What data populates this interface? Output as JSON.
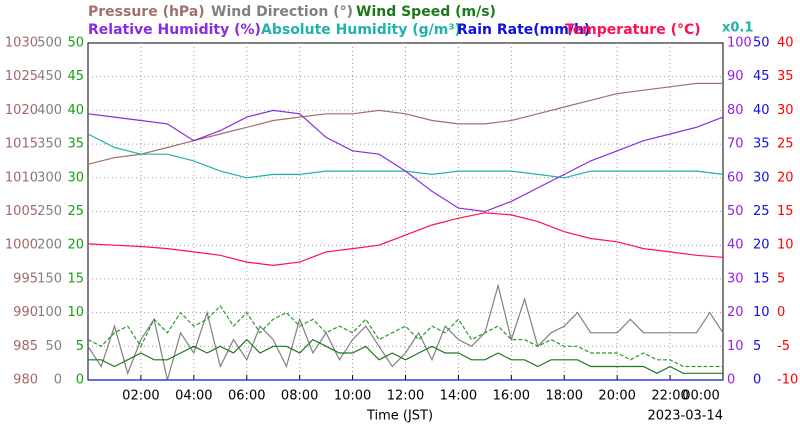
{
  "chart_data": {
    "type": "line",
    "xlabel": "Time (JST)",
    "date_label": "2023-03-14",
    "xlim": [
      0,
      24
    ],
    "xticks": [
      {
        "value": 2,
        "label": "02:00"
      },
      {
        "value": 4,
        "label": "04:00"
      },
      {
        "value": 6,
        "label": "06:00"
      },
      {
        "value": 8,
        "label": "08:00"
      },
      {
        "value": 10,
        "label": "10:00"
      },
      {
        "value": 12,
        "label": "12:00"
      },
      {
        "value": 14,
        "label": "14:00"
      },
      {
        "value": 16,
        "label": "16:00"
      },
      {
        "value": 18,
        "label": "18:00"
      },
      {
        "value": 20,
        "label": "20:00"
      },
      {
        "value": 22,
        "label": "22:00"
      },
      {
        "value": 24,
        "label": "00:00"
      }
    ],
    "grid": true,
    "x": [
      0,
      1,
      2,
      3,
      4,
      5,
      6,
      7,
      8,
      9,
      10,
      11,
      12,
      13,
      14,
      15,
      16,
      17,
      18,
      19,
      20,
      21,
      22,
      23,
      24
    ],
    "axes": [
      {
        "color": "#a06868",
        "lim": [
          980,
          1030
        ],
        "ticks": [
          980,
          985,
          990,
          995,
          1000,
          1005,
          1010,
          1015,
          1020,
          1025,
          1030
        ]
      },
      {
        "color": "#808080",
        "lim": [
          0,
          500
        ],
        "ticks": [
          0,
          50,
          100,
          150,
          200,
          250,
          300,
          350,
          400,
          450,
          500
        ]
      },
      {
        "color": "#16a016",
        "lim": [
          0,
          50
        ],
        "ticks": [
          0,
          5,
          10,
          15,
          20,
          25,
          30,
          35,
          40,
          45,
          50
        ]
      },
      {
        "color": "#9a1ee6",
        "lim": [
          0,
          100
        ],
        "ticks": [
          0,
          10,
          20,
          30,
          40,
          50,
          60,
          70,
          80,
          90,
          100
        ]
      },
      {
        "color": "#1010e0",
        "lim": [
          0,
          50
        ],
        "ticks": [
          0,
          5,
          10,
          15,
          20,
          25,
          30,
          35,
          40,
          45,
          50
        ]
      },
      {
        "color": "#ff0000",
        "lim": [
          -10,
          40
        ],
        "ticks": [
          -10,
          -5,
          0,
          5,
          10,
          15,
          20,
          25,
          30,
          35,
          40
        ]
      }
    ],
    "series": [
      {
        "name": "Pressure (hPa)",
        "color": "#a07070",
        "axis": 0,
        "values": [
          1012,
          1013,
          1013.5,
          1014.5,
          1015.5,
          1016.5,
          1017.5,
          1018.5,
          1019,
          1019.5,
          1019.5,
          1020,
          1019.5,
          1018.5,
          1018,
          1018,
          1018.5,
          1019.5,
          1020.5,
          1021.5,
          1022.5,
          1023,
          1023.5,
          1024,
          1024
        ]
      },
      {
        "name": "Wind Direction (°)",
        "color": "#808080",
        "axis": 1,
        "x": [
          0,
          0.5,
          1,
          1.5,
          2,
          2.5,
          3,
          3.5,
          4,
          4.5,
          5,
          5.5,
          6,
          6.5,
          7,
          7.5,
          8,
          8.5,
          9,
          9.5,
          10,
          10.5,
          11,
          11.5,
          12,
          12.5,
          13,
          13.5,
          14,
          14.5,
          15,
          15.5,
          16,
          16.5,
          17,
          17.5,
          18,
          18.5,
          19,
          19.5,
          20,
          20.5,
          21,
          21.5,
          22,
          22.5,
          23,
          23.5,
          24
        ],
        "values": [
          50,
          20,
          80,
          10,
          60,
          90,
          0,
          70,
          40,
          100,
          20,
          60,
          30,
          80,
          60,
          20,
          90,
          40,
          70,
          30,
          60,
          80,
          50,
          20,
          40,
          70,
          30,
          80,
          60,
          50,
          70,
          140,
          60,
          120,
          50,
          70,
          80,
          100,
          70,
          70,
          70,
          90,
          70,
          70,
          70,
          70,
          70,
          100,
          70
        ]
      },
      {
        "name": "Wind Speed (m/s)",
        "color": "#1a7a1a",
        "axis": 2,
        "x": [
          0,
          0.5,
          1,
          1.5,
          2,
          2.5,
          3,
          3.5,
          4,
          4.5,
          5,
          5.5,
          6,
          6.5,
          7,
          7.5,
          8,
          8.5,
          9,
          9.5,
          10,
          10.5,
          11,
          11.5,
          12,
          12.5,
          13,
          13.5,
          14,
          14.5,
          15,
          15.5,
          16,
          16.5,
          17,
          17.5,
          18,
          18.5,
          19,
          19.5,
          20,
          20.5,
          21,
          21.5,
          22,
          22.5,
          23,
          23.5,
          24
        ],
        "values": [
          3,
          3,
          2,
          3,
          4,
          3,
          3,
          4,
          5,
          4,
          5,
          4,
          6,
          4,
          5,
          5,
          4,
          6,
          5,
          4,
          4,
          5,
          3,
          4,
          3,
          4,
          5,
          4,
          4,
          3,
          3,
          4,
          3,
          3,
          2,
          3,
          3,
          3,
          2,
          2,
          2,
          2,
          2,
          1,
          2,
          1,
          1,
          1,
          1
        ]
      },
      {
        "color": "#2a9a2a",
        "axis": 2,
        "dashed": true,
        "x": [
          0,
          0.5,
          1,
          1.5,
          2,
          2.5,
          3,
          3.5,
          4,
          4.5,
          5,
          5.5,
          6,
          6.5,
          7,
          7.5,
          8,
          8.5,
          9,
          9.5,
          10,
          10.5,
          11,
          11.5,
          12,
          12.5,
          13,
          13.5,
          14,
          14.5,
          15,
          15.5,
          16,
          16.5,
          17,
          17.5,
          18,
          18.5,
          19,
          19.5,
          20,
          20.5,
          21,
          21.5,
          22,
          22.5,
          23,
          23.5,
          24
        ],
        "values": [
          6,
          5,
          7,
          8,
          5,
          9,
          7,
          10,
          8,
          9,
          11,
          8,
          10,
          7,
          9,
          10,
          8,
          9,
          7,
          8,
          7,
          9,
          6,
          7,
          8,
          6,
          8,
          7,
          9,
          6,
          7,
          8,
          6,
          6,
          5,
          6,
          5,
          5,
          4,
          4,
          4,
          3,
          4,
          3,
          3,
          2,
          2,
          2,
          2
        ]
      },
      {
        "name": "Relative Humidity (%)",
        "color": "#8a2be2",
        "axis": 3,
        "values": [
          79,
          78,
          77,
          76,
          71,
          74,
          78,
          80,
          79,
          72,
          68,
          67,
          62,
          56,
          51,
          50,
          53,
          57,
          61,
          65,
          68,
          71,
          73,
          75,
          78
        ]
      },
      {
        "name": "Absolute Humidity (g/m³)",
        "scale_label": "x0.1",
        "color": "#20b2aa",
        "axis": 3,
        "values": [
          73,
          69,
          67,
          67,
          65,
          62,
          60,
          61,
          61,
          62,
          62,
          62,
          62,
          61,
          62,
          62,
          62,
          61,
          60,
          62,
          62,
          62,
          62,
          62,
          61
        ]
      },
      {
        "name": "Rain Rate(mm/h)",
        "color": "#1010e0",
        "axis": 4,
        "values": [
          0,
          0,
          0,
          0,
          0,
          0,
          0,
          0,
          0,
          0,
          0,
          0,
          0,
          0,
          0,
          0,
          0,
          0,
          0,
          0,
          0,
          0,
          0,
          0,
          0
        ]
      },
      {
        "name": "Temperature (°C)",
        "color": "#ff1050",
        "axis": 5,
        "values": [
          10.2,
          10,
          9.8,
          9.5,
          9,
          8.5,
          7.5,
          7,
          7.5,
          9,
          9.5,
          10,
          11.5,
          13,
          14,
          14.8,
          14.5,
          13.5,
          12,
          11,
          10.5,
          9.5,
          9,
          8.5,
          8.2
        ]
      }
    ]
  }
}
